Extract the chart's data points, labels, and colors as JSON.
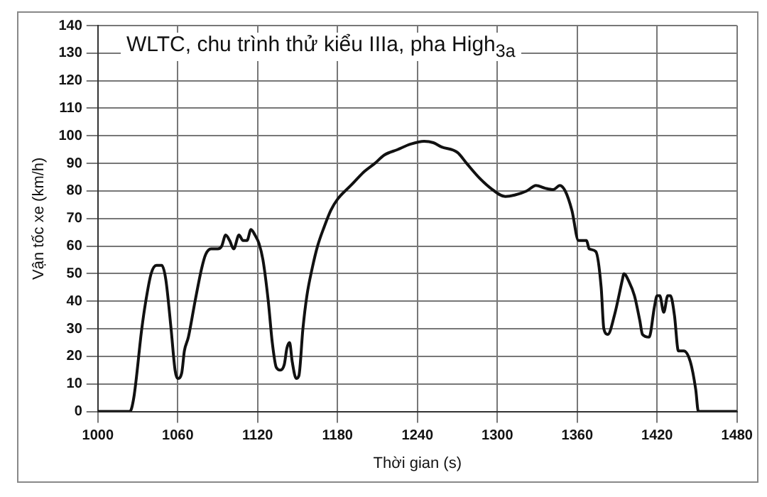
{
  "chart_data": {
    "type": "line",
    "title": "WLTC, chu trình thử kiểu IIIa, pha High$_{3a}$",
    "xlabel": "Thời gian (s)",
    "ylabel": "Vận tốc xe (km/h)",
    "x": [
      1000,
      1024,
      1027,
      1033,
      1036,
      1040,
      1044,
      1048,
      1051,
      1055,
      1058,
      1060,
      1063,
      1065,
      1068,
      1073,
      1078,
      1081,
      1085,
      1090,
      1093,
      1096,
      1099,
      1102,
      1106,
      1109,
      1112,
      1115,
      1118,
      1121,
      1124,
      1128,
      1131,
      1134,
      1137,
      1140,
      1142,
      1144,
      1146,
      1149,
      1151,
      1154,
      1157,
      1161,
      1165,
      1170,
      1175,
      1180,
      1190,
      1200,
      1208,
      1215,
      1225,
      1235,
      1245,
      1252,
      1258,
      1270,
      1277,
      1286,
      1295,
      1306,
      1313,
      1322,
      1329,
      1336,
      1342,
      1347,
      1351,
      1356,
      1361,
      1367,
      1369,
      1374,
      1378,
      1380,
      1383,
      1388,
      1394,
      1395,
      1399,
      1403,
      1407,
      1409,
      1414,
      1418,
      1420,
      1422,
      1425,
      1428,
      1430,
      1433,
      1436,
      1440,
      1445,
      1449,
      1451,
      1480
    ],
    "series": [
      {
        "color": "#111111",
        "values": [
          0,
          0,
          5,
          30,
          40,
          50,
          53,
          53,
          48,
          30,
          15,
          12,
          14,
          22,
          27,
          40,
          52,
          57,
          59,
          59,
          60,
          64,
          62,
          59,
          64,
          62,
          62,
          66,
          64,
          61,
          55,
          40,
          25,
          16,
          15,
          17,
          23,
          25,
          18,
          12,
          13,
          30,
          42,
          52,
          60,
          67,
          73,
          77,
          82,
          87,
          90,
          93,
          95,
          97,
          98,
          97.5,
          96,
          94,
          90,
          85,
          81,
          78,
          78.5,
          80,
          82,
          81,
          80.5,
          82,
          80,
          73,
          62,
          62,
          59,
          58,
          45,
          30,
          28,
          35,
          48,
          50,
          47,
          42,
          33,
          28,
          27,
          38,
          42,
          42,
          36,
          42,
          42,
          35,
          22,
          22,
          18,
          8,
          0,
          0
        ]
      }
    ],
    "xlim": [
      1000,
      1480
    ],
    "ylim": [
      0,
      140
    ],
    "xticks": [
      1000,
      1060,
      1120,
      1180,
      1240,
      1300,
      1360,
      1420,
      1480
    ],
    "yticks": [
      0,
      10,
      20,
      30,
      40,
      50,
      60,
      70,
      80,
      90,
      100,
      110,
      120,
      130,
      140
    ],
    "grid": true,
    "legend": false,
    "marker": "none",
    "line_style": "solid"
  }
}
